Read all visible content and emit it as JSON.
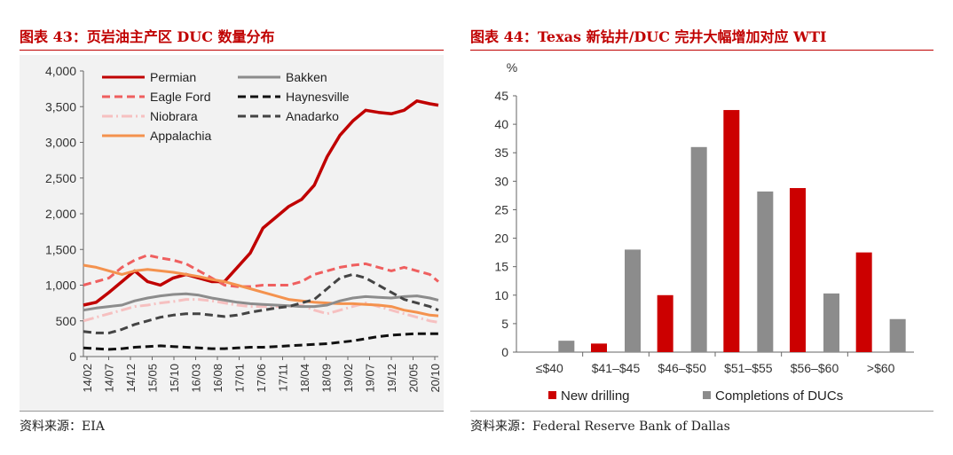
{
  "left_panel": {
    "title": "图表 43：页岩油主产区 DUC 数量分布",
    "source": "资料来源：EIA"
  },
  "right_panel": {
    "title": "图表 44：Texas 新钻井/DUC 完井大幅增加对应 WTI",
    "source": "资料来源：Federal Reserve Bank of Dallas"
  },
  "colors": {
    "title_red": "#c00000",
    "Permian": "#c00000",
    "Bakken": "#8c8c8c",
    "Eagle Ford": "#ef5f5f",
    "Haynesville": "#111111",
    "Niobrara": "#f6c0c0",
    "Anadarko": "#444444",
    "Appalachia": "#f4924e",
    "New drilling": "#cc0000",
    "Completions of DUCs": "#8c8c8c"
  },
  "chart_data": [
    {
      "type": "line",
      "ylim": [
        0,
        4000
      ],
      "yticks": [
        "0",
        "500",
        "1,000",
        "1,500",
        "2,000",
        "2,500",
        "3,000",
        "3,500",
        "4,000"
      ],
      "x_tick_labels": [
        "14/02",
        "14/07",
        "14/12",
        "15/05",
        "15/10",
        "16/03",
        "16/08",
        "17/01",
        "17/06",
        "17/11",
        "18/04",
        "18/09",
        "19/02",
        "19/07",
        "19/12",
        "20/05",
        "20/10"
      ],
      "x_months": [
        "2014-01",
        "2014-04",
        "2014-07",
        "2014-10",
        "2015-01",
        "2015-04",
        "2015-07",
        "2015-10",
        "2016-01",
        "2016-04",
        "2016-07",
        "2016-10",
        "2017-01",
        "2017-04",
        "2017-07",
        "2017-10",
        "2018-01",
        "2018-04",
        "2018-07",
        "2018-10",
        "2019-01",
        "2019-04",
        "2019-07",
        "2019-10",
        "2020-01",
        "2020-04",
        "2020-07",
        "2020-10",
        "2020-12"
      ],
      "legend_position": "top-left",
      "grid": false,
      "series": [
        {
          "name": "Permian",
          "style": "solid",
          "values": [
            720,
            760,
            900,
            1050,
            1200,
            1050,
            1000,
            1100,
            1150,
            1100,
            1050,
            1050,
            1250,
            1450,
            1800,
            1950,
            2100,
            2200,
            2400,
            2800,
            3100,
            3300,
            3450,
            3420,
            3400,
            3450,
            3580,
            3540,
            3520
          ]
        },
        {
          "name": "Eagle Ford",
          "style": "dashed",
          "values": [
            1000,
            1050,
            1100,
            1250,
            1350,
            1420,
            1380,
            1350,
            1300,
            1200,
            1100,
            1000,
            980,
            980,
            1000,
            1000,
            1000,
            1050,
            1150,
            1200,
            1250,
            1280,
            1300,
            1250,
            1200,
            1250,
            1200,
            1150,
            1050
          ]
        },
        {
          "name": "Niobrara",
          "style": "dashdot",
          "values": [
            500,
            550,
            600,
            650,
            700,
            720,
            750,
            770,
            800,
            800,
            780,
            750,
            720,
            700,
            700,
            700,
            700,
            720,
            650,
            600,
            650,
            700,
            750,
            700,
            650,
            600,
            550,
            500,
            480
          ]
        },
        {
          "name": "Appalachia",
          "style": "solid",
          "values": [
            1280,
            1250,
            1200,
            1150,
            1200,
            1220,
            1200,
            1180,
            1150,
            1120,
            1080,
            1050,
            1000,
            950,
            900,
            850,
            800,
            780,
            760,
            750,
            740,
            740,
            730,
            720,
            700,
            650,
            620,
            580,
            570
          ]
        },
        {
          "name": "Bakken",
          "style": "solid",
          "values": [
            650,
            680,
            700,
            720,
            780,
            820,
            850,
            870,
            880,
            860,
            820,
            790,
            760,
            740,
            730,
            720,
            710,
            700,
            700,
            720,
            780,
            820,
            840,
            830,
            820,
            840,
            850,
            820,
            790
          ]
        },
        {
          "name": "Haynesville",
          "style": "dashed",
          "values": [
            120,
            110,
            100,
            110,
            130,
            140,
            150,
            140,
            130,
            120,
            110,
            110,
            120,
            130,
            130,
            140,
            150,
            160,
            170,
            180,
            200,
            220,
            250,
            280,
            300,
            310,
            320,
            320,
            320
          ]
        },
        {
          "name": "Anadarko",
          "style": "dashed",
          "values": [
            350,
            330,
            330,
            380,
            450,
            500,
            550,
            580,
            600,
            600,
            580,
            560,
            580,
            620,
            650,
            680,
            700,
            750,
            800,
            950,
            1100,
            1150,
            1100,
            1000,
            900,
            800,
            750,
            700,
            650
          ]
        }
      ]
    },
    {
      "type": "bar",
      "ylabel": "%",
      "ylim": [
        0,
        45
      ],
      "yticks": [
        "0",
        "5",
        "10",
        "15",
        "20",
        "25",
        "30",
        "35",
        "40",
        "45"
      ],
      "categories": [
        "≤$40",
        "$41–$45",
        "$46–$50",
        "$51–$55",
        "$56–$60",
        ">$60"
      ],
      "legend_position": "bottom",
      "grid": false,
      "series": [
        {
          "name": "New drilling",
          "values": [
            0,
            1.5,
            10,
            42.5,
            28.8,
            17.5
          ]
        },
        {
          "name": "Completions of DUCs",
          "values": [
            2,
            18,
            36,
            28.2,
            10.3,
            5.8
          ]
        }
      ]
    }
  ]
}
